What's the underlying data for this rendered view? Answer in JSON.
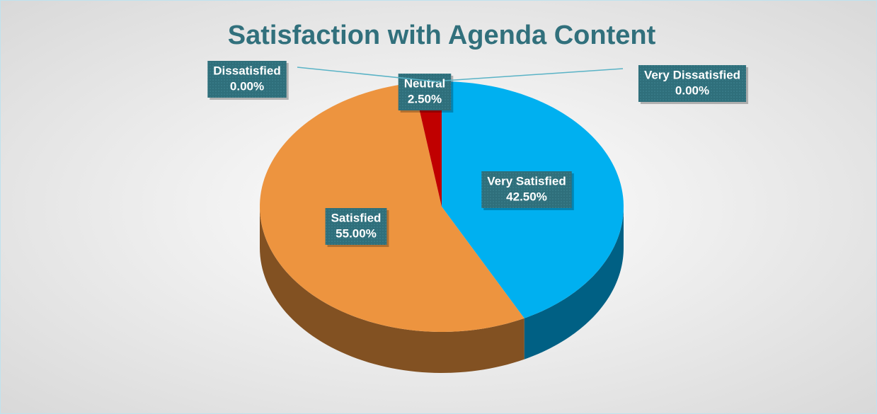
{
  "chart_data": {
    "type": "pie",
    "title": "Satisfaction with Agenda Content",
    "categories": [
      "Very Satisfied",
      "Satisfied",
      "Neutral",
      "Dissatisfied",
      "Very Dissatisfied"
    ],
    "values": [
      42.5,
      55,
      2.5,
      0,
      0
    ],
    "value_labels": [
      "42.50%",
      "55.00%",
      "2.50%",
      "0.00%",
      "0.00%"
    ],
    "colors": [
      "#00b0f0",
      "#ed943f",
      "#c00000",
      "#a5a5a5",
      "#4472c4"
    ]
  }
}
